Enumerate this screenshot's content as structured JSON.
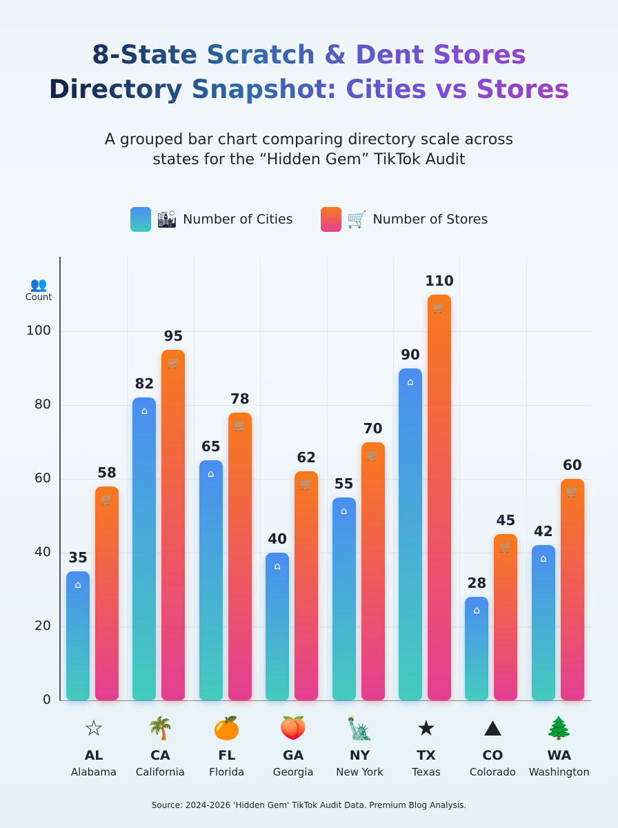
{
  "title_line1": "8-State Scratch & Dent Stores",
  "title_line2": "Directory Snapshot: Cities vs Stores",
  "subtitle_line1": "A grouped bar chart comparing directory scale across",
  "subtitle_line2": "states for the “Hidden Gem” TikTok Audit",
  "source": "Source: 2024-2026 'Hidden Gem' TikTok Audit Data. Premium Blog Analysis.",
  "colors": {
    "cities_top": "#4a8ef0",
    "cities_bottom": "#45cbbd",
    "stores_top": "#f77a1c",
    "stores_bottom": "#e43f93"
  },
  "chart_data": {
    "type": "bar",
    "ylabel": "Count",
    "ylim": [
      0,
      110
    ],
    "yticks": [
      0,
      20,
      40,
      60,
      80,
      100
    ],
    "grid": true,
    "legend": "top-center",
    "categories": [
      "AL",
      "CA",
      "FL",
      "GA",
      "NY",
      "TX",
      "CO",
      "WA"
    ],
    "category_names": [
      "Alabama",
      "California",
      "Florida",
      "Georgia",
      "New York",
      "Texas",
      "Colorado",
      "Washington"
    ],
    "category_icons": [
      "alabama-map-icon",
      "palm-sun-icon",
      "orange-florida-icon",
      "peach-icon",
      "statue-of-liberty-icon",
      "texas-map-icon",
      "mountains-icon",
      "apple-tree-icon"
    ],
    "series": [
      {
        "name": "Number of Cities",
        "icon": "city-pin-icon",
        "values": [
          35,
          82,
          65,
          40,
          55,
          90,
          28,
          42
        ]
      },
      {
        "name": "Number of Stores",
        "icon": "shopping-cart-icon",
        "values": [
          58,
          95,
          78,
          62,
          70,
          110,
          45,
          60
        ]
      }
    ]
  }
}
